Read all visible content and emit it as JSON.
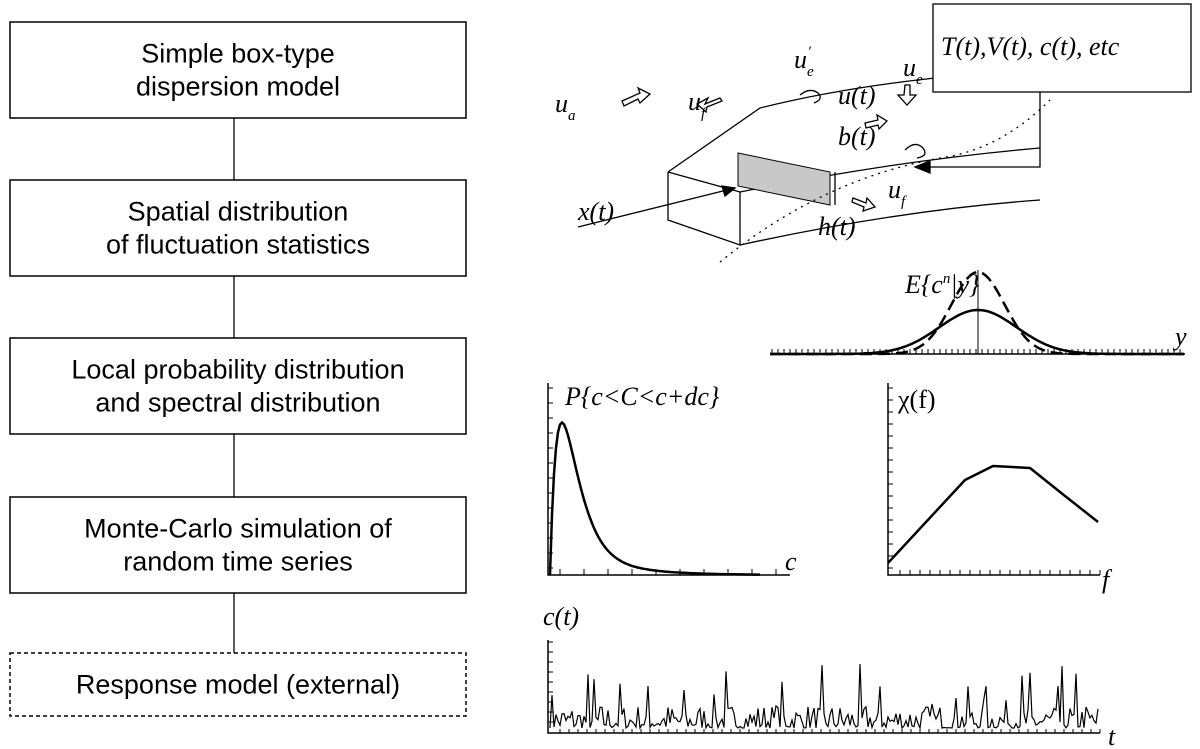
{
  "flow": {
    "boxes": [
      {
        "lines": [
          "Simple box-type",
          "dispersion model"
        ]
      },
      {
        "lines": [
          "Spatial distribution",
          "of fluctuation statistics"
        ]
      },
      {
        "lines": [
          "Local probability distribution",
          "and spectral distribution"
        ]
      },
      {
        "lines": [
          "Monte-Carlo simulation of",
          "random time series"
        ]
      },
      {
        "lines": [
          "Response model (external)"
        ],
        "dashed": true
      }
    ]
  },
  "model_diagram": {
    "ambient_velocity": {
      "base": "u",
      "sub": "a"
    },
    "front_velocity_upper": {
      "base": "u",
      "sub": "f"
    },
    "entrainment_turbulent": {
      "base": "u",
      "sub": "e",
      "sup": "′"
    },
    "entrainment": {
      "base": "u",
      "sub": "e"
    },
    "velocity": "u(t)",
    "width": "b(t)",
    "position": "x(t)",
    "height": "h(t)",
    "front_velocity_lower": {
      "base": "u",
      "sub": "f"
    },
    "state_box": "T(t),V(t), c(t), etc"
  },
  "plots": {
    "spatial": {
      "label": {
        "before": "E{c",
        "sup": "n",
        "after": "|y}"
      },
      "x_label": "y"
    },
    "pdf": {
      "label": "P{c<C<c+dc}",
      "x_label": "c"
    },
    "spectrum": {
      "label": "χ(f)",
      "x_label": "f"
    },
    "series": {
      "label": "c(t)",
      "x_label": "t"
    }
  }
}
